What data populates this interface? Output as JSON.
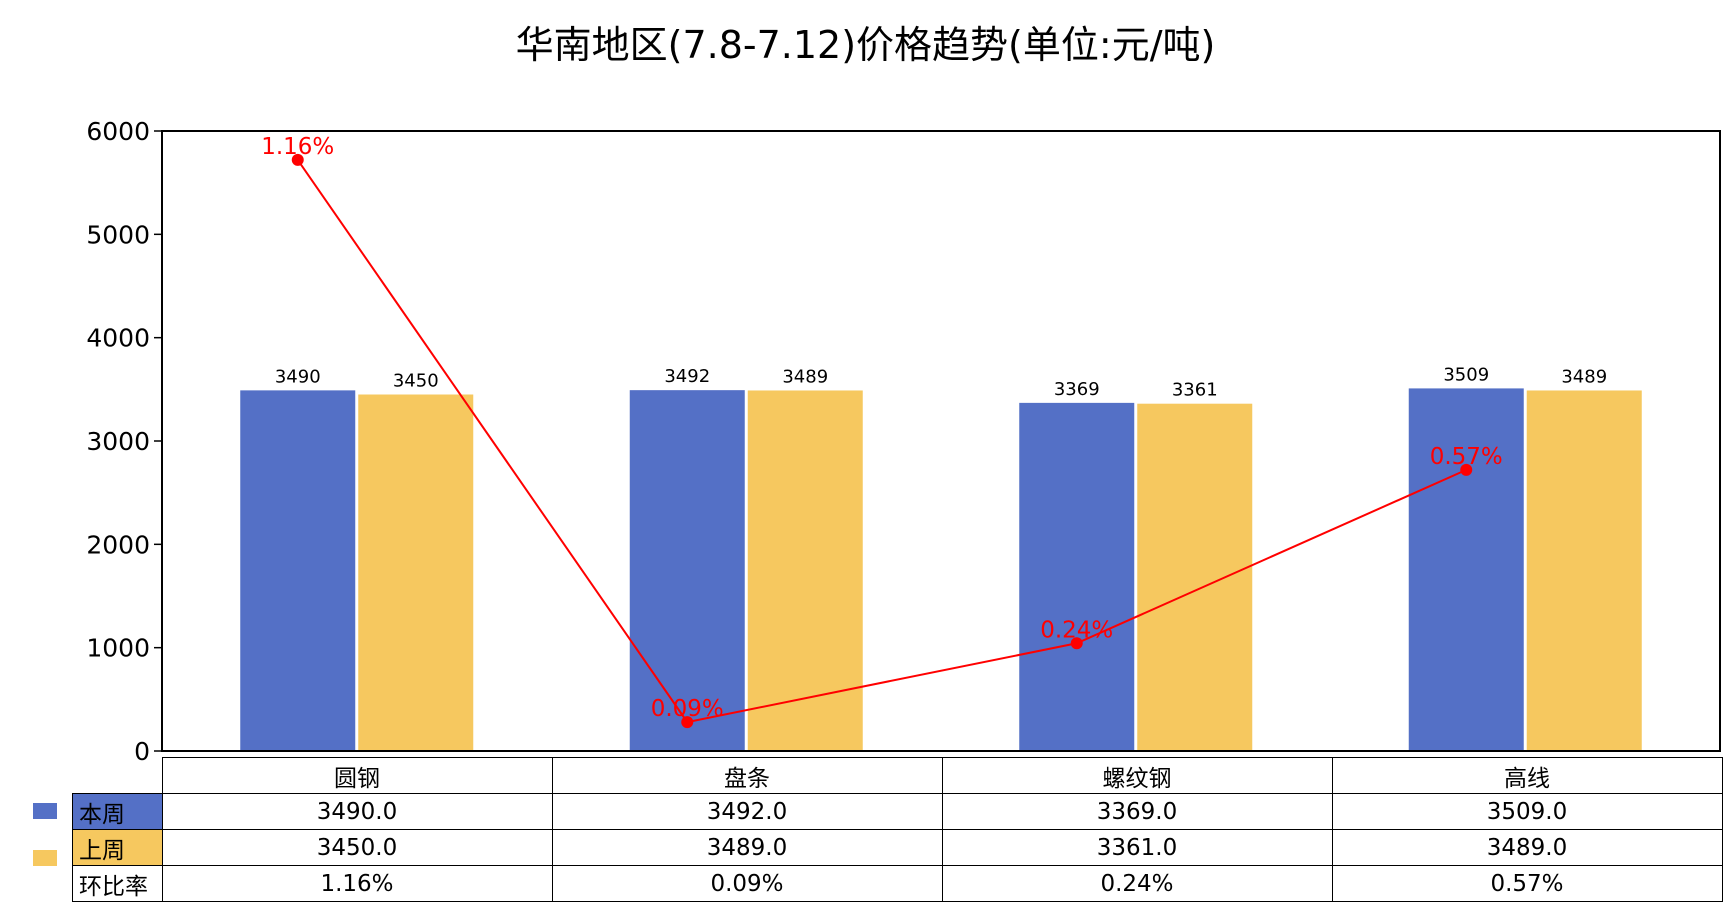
{
  "chart_data": {
    "type": "bar",
    "title": "华南地区(7.8-7.12)价格趋势(单位:元/吨)",
    "categories": [
      "圆钢",
      "盘条",
      "螺纹钢",
      "高线"
    ],
    "ylim": [
      0,
      6000
    ],
    "yticks": [
      "0",
      "1000",
      "2000",
      "3000",
      "4000",
      "5000",
      "6000"
    ],
    "series": [
      {
        "name": "本周",
        "values": [
          3490,
          3492,
          3369,
          3509
        ],
        "color": "#5470c6"
      },
      {
        "name": "上周",
        "values": [
          3450,
          3489,
          3361,
          3489
        ],
        "color": "#f6c85f"
      }
    ],
    "line": {
      "name": "环比率",
      "type": "line",
      "values": [
        1.16,
        0.09,
        0.24,
        0.57
      ],
      "labels": [
        "1.16%",
        "0.09%",
        "0.24%",
        "0.57%"
      ],
      "color": "#ff0000",
      "secondary_axis_hidden": true,
      "secondary_ylim": [
        0.035,
        1.215
      ]
    },
    "grid": false,
    "legend": "table-left"
  },
  "table": {
    "rows": [
      {
        "label": "本周",
        "cells": [
          "3490.0",
          "3492.0",
          "3369.0",
          "3509.0"
        ]
      },
      {
        "label": "上周",
        "cells": [
          "3450.0",
          "3489.0",
          "3361.0",
          "3489.0"
        ]
      },
      {
        "label": "环比率",
        "cells": [
          "1.16%",
          "0.09%",
          "0.24%",
          "0.57%"
        ]
      }
    ]
  }
}
